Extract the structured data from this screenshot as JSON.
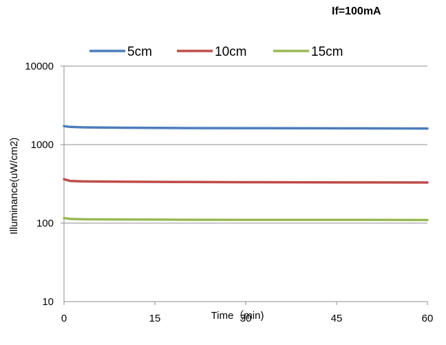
{
  "chart_data": {
    "type": "line",
    "title": "If=100mA",
    "xlabel": "Time（min)",
    "ylabel": "Illuminance(uW/cm2)",
    "x_ticks": [
      "0",
      "15",
      "30",
      "45",
      "60"
    ],
    "y_ticks": [
      "10",
      "100",
      "1000",
      "10000"
    ],
    "xlim": [
      0,
      60
    ],
    "ylim": [
      10,
      10000
    ],
    "y_scale": "log",
    "grid": "horizontal",
    "legend_position": "top",
    "series": [
      {
        "name": "5cm",
        "color": "#4a7ebb",
        "points": [
          [
            0,
            1720
          ],
          [
            1,
            1680
          ],
          [
            3,
            1660
          ],
          [
            10,
            1640
          ],
          [
            20,
            1625
          ],
          [
            30,
            1620
          ],
          [
            40,
            1615
          ],
          [
            50,
            1610
          ],
          [
            60,
            1605
          ]
        ]
      },
      {
        "name": "10cm",
        "color": "#be4b48",
        "points": [
          [
            0,
            362
          ],
          [
            1,
            345
          ],
          [
            3,
            340
          ],
          [
            10,
            337
          ],
          [
            20,
            334
          ],
          [
            30,
            332
          ],
          [
            40,
            331
          ],
          [
            50,
            330
          ],
          [
            60,
            329
          ]
        ]
      },
      {
        "name": "15cm",
        "color": "#98b954",
        "points": [
          [
            0,
            116
          ],
          [
            1,
            113
          ],
          [
            3,
            112
          ],
          [
            10,
            111
          ],
          [
            20,
            110.5
          ],
          [
            30,
            110
          ],
          [
            40,
            110
          ],
          [
            50,
            110
          ],
          [
            60,
            109.5
          ]
        ]
      }
    ]
  }
}
